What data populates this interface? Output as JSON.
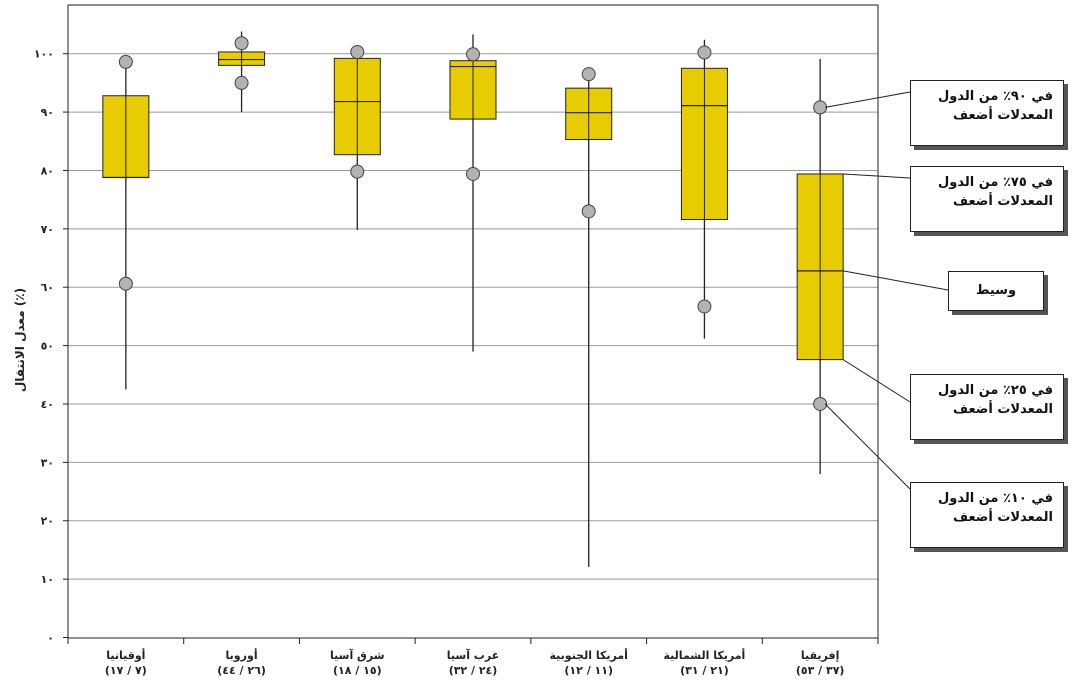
{
  "chart_data": {
    "type": "box",
    "ylabel": "معدل الانتقال (٪)",
    "ylim": [
      0,
      100
    ],
    "yticks": [
      "٠",
      "١٠",
      "٢٠",
      "٣٠",
      "٤٠",
      "٥٠",
      "٦٠",
      "٧٠",
      "٨٠",
      "٩٠",
      "١٠٠"
    ],
    "grid": true,
    "box_color": "#e6cc00",
    "marker_color": "#b3b3b3",
    "categories": [
      {
        "label": "أوقيانيا",
        "sub": "(٧ / ١٧)",
        "min": 42.5,
        "p10": 60.6,
        "q1": 78.8,
        "median": 78.8,
        "q3": 92.8,
        "p90": 98.6,
        "max": 98.6
      },
      {
        "label": "أوروبا",
        "sub": "(٢٦ / ٤٤)",
        "min": 90.0,
        "p10": 95.0,
        "q1": 98.0,
        "median": 99.0,
        "q3": 100.3,
        "p90": 101.8,
        "max": 103.8
      },
      {
        "label": "شرق آسيا",
        "sub": "(١٥ / ١٨)",
        "min": 69.8,
        "p10": 79.8,
        "q1": 82.7,
        "median": 91.8,
        "q3": 99.2,
        "p90": 100.3,
        "max": 100.3
      },
      {
        "label": "غرب آسيا",
        "sub": "(٢٤ / ٣٢)",
        "min": 49.0,
        "p10": 79.4,
        "q1": 88.8,
        "median": 97.8,
        "q3": 98.8,
        "p90": 99.9,
        "max": 103.3
      },
      {
        "label": "أمريكا الجنوبية",
        "sub": "(١١ / ١٢)",
        "min": 12.1,
        "p10": 73.0,
        "q1": 85.3,
        "median": 89.9,
        "q3": 94.1,
        "p90": 96.5,
        "max": 96.5
      },
      {
        "label": "أمريكا الشمالية",
        "sub": "(٢١ / ٣١)",
        "min": 51.2,
        "p10": 56.7,
        "q1": 71.6,
        "median": 91.1,
        "q3": 97.5,
        "p90": 100.2,
        "max": 102.4
      },
      {
        "label": "إفريقيا",
        "sub": "(٣٧ / ٥٣)",
        "min": 28.0,
        "p10": 40.0,
        "q1": 47.6,
        "median": 62.8,
        "q3": 79.4,
        "p90": 90.8,
        "max": 99.1
      }
    ],
    "annotations": [
      {
        "line1": "في ٩٠٪ من الدول",
        "line2": "المعدلات أضعف",
        "target": "p90"
      },
      {
        "line1": "في ٧٥٪ من الدول",
        "line2": "المعدلات أضعف",
        "target": "q3"
      },
      {
        "line1": "وسيط",
        "line2": "",
        "target": "median"
      },
      {
        "line1": "في ٢٥٪ من الدول",
        "line2": "المعدلات أضعف",
        "target": "q1"
      },
      {
        "line1": "في ١٠٪ من الدول",
        "line2": "المعدلات أضعف",
        "target": "p10"
      }
    ]
  }
}
